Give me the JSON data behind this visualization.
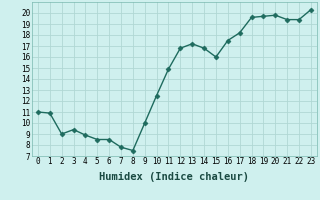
{
  "x": [
    0,
    1,
    2,
    3,
    4,
    5,
    6,
    7,
    8,
    9,
    10,
    11,
    12,
    13,
    14,
    15,
    16,
    17,
    18,
    19,
    20,
    21,
    22,
    23
  ],
  "y": [
    11.0,
    10.9,
    9.0,
    9.4,
    8.9,
    8.5,
    8.5,
    7.8,
    7.5,
    10.0,
    12.5,
    14.9,
    16.8,
    17.2,
    16.8,
    16.0,
    17.5,
    18.2,
    19.6,
    19.7,
    19.8,
    19.4,
    19.4,
    20.3
  ],
  "line_color": "#1e6b5e",
  "marker": "D",
  "marker_size": 2.5,
  "bg_color": "#cff0ee",
  "grid_color": "#b0d8d4",
  "xlabel": "Humidex (Indice chaleur)",
  "xlim": [
    -0.5,
    23.5
  ],
  "ylim": [
    7,
    21
  ],
  "yticks": [
    7,
    8,
    9,
    10,
    11,
    12,
    13,
    14,
    15,
    16,
    17,
    18,
    19,
    20
  ],
  "xticks": [
    0,
    1,
    2,
    3,
    4,
    5,
    6,
    7,
    8,
    9,
    10,
    11,
    12,
    13,
    14,
    15,
    16,
    17,
    18,
    19,
    20,
    21,
    22,
    23
  ],
  "tick_fontsize": 5.5,
  "xlabel_fontsize": 7.5,
  "line_width": 1.0
}
